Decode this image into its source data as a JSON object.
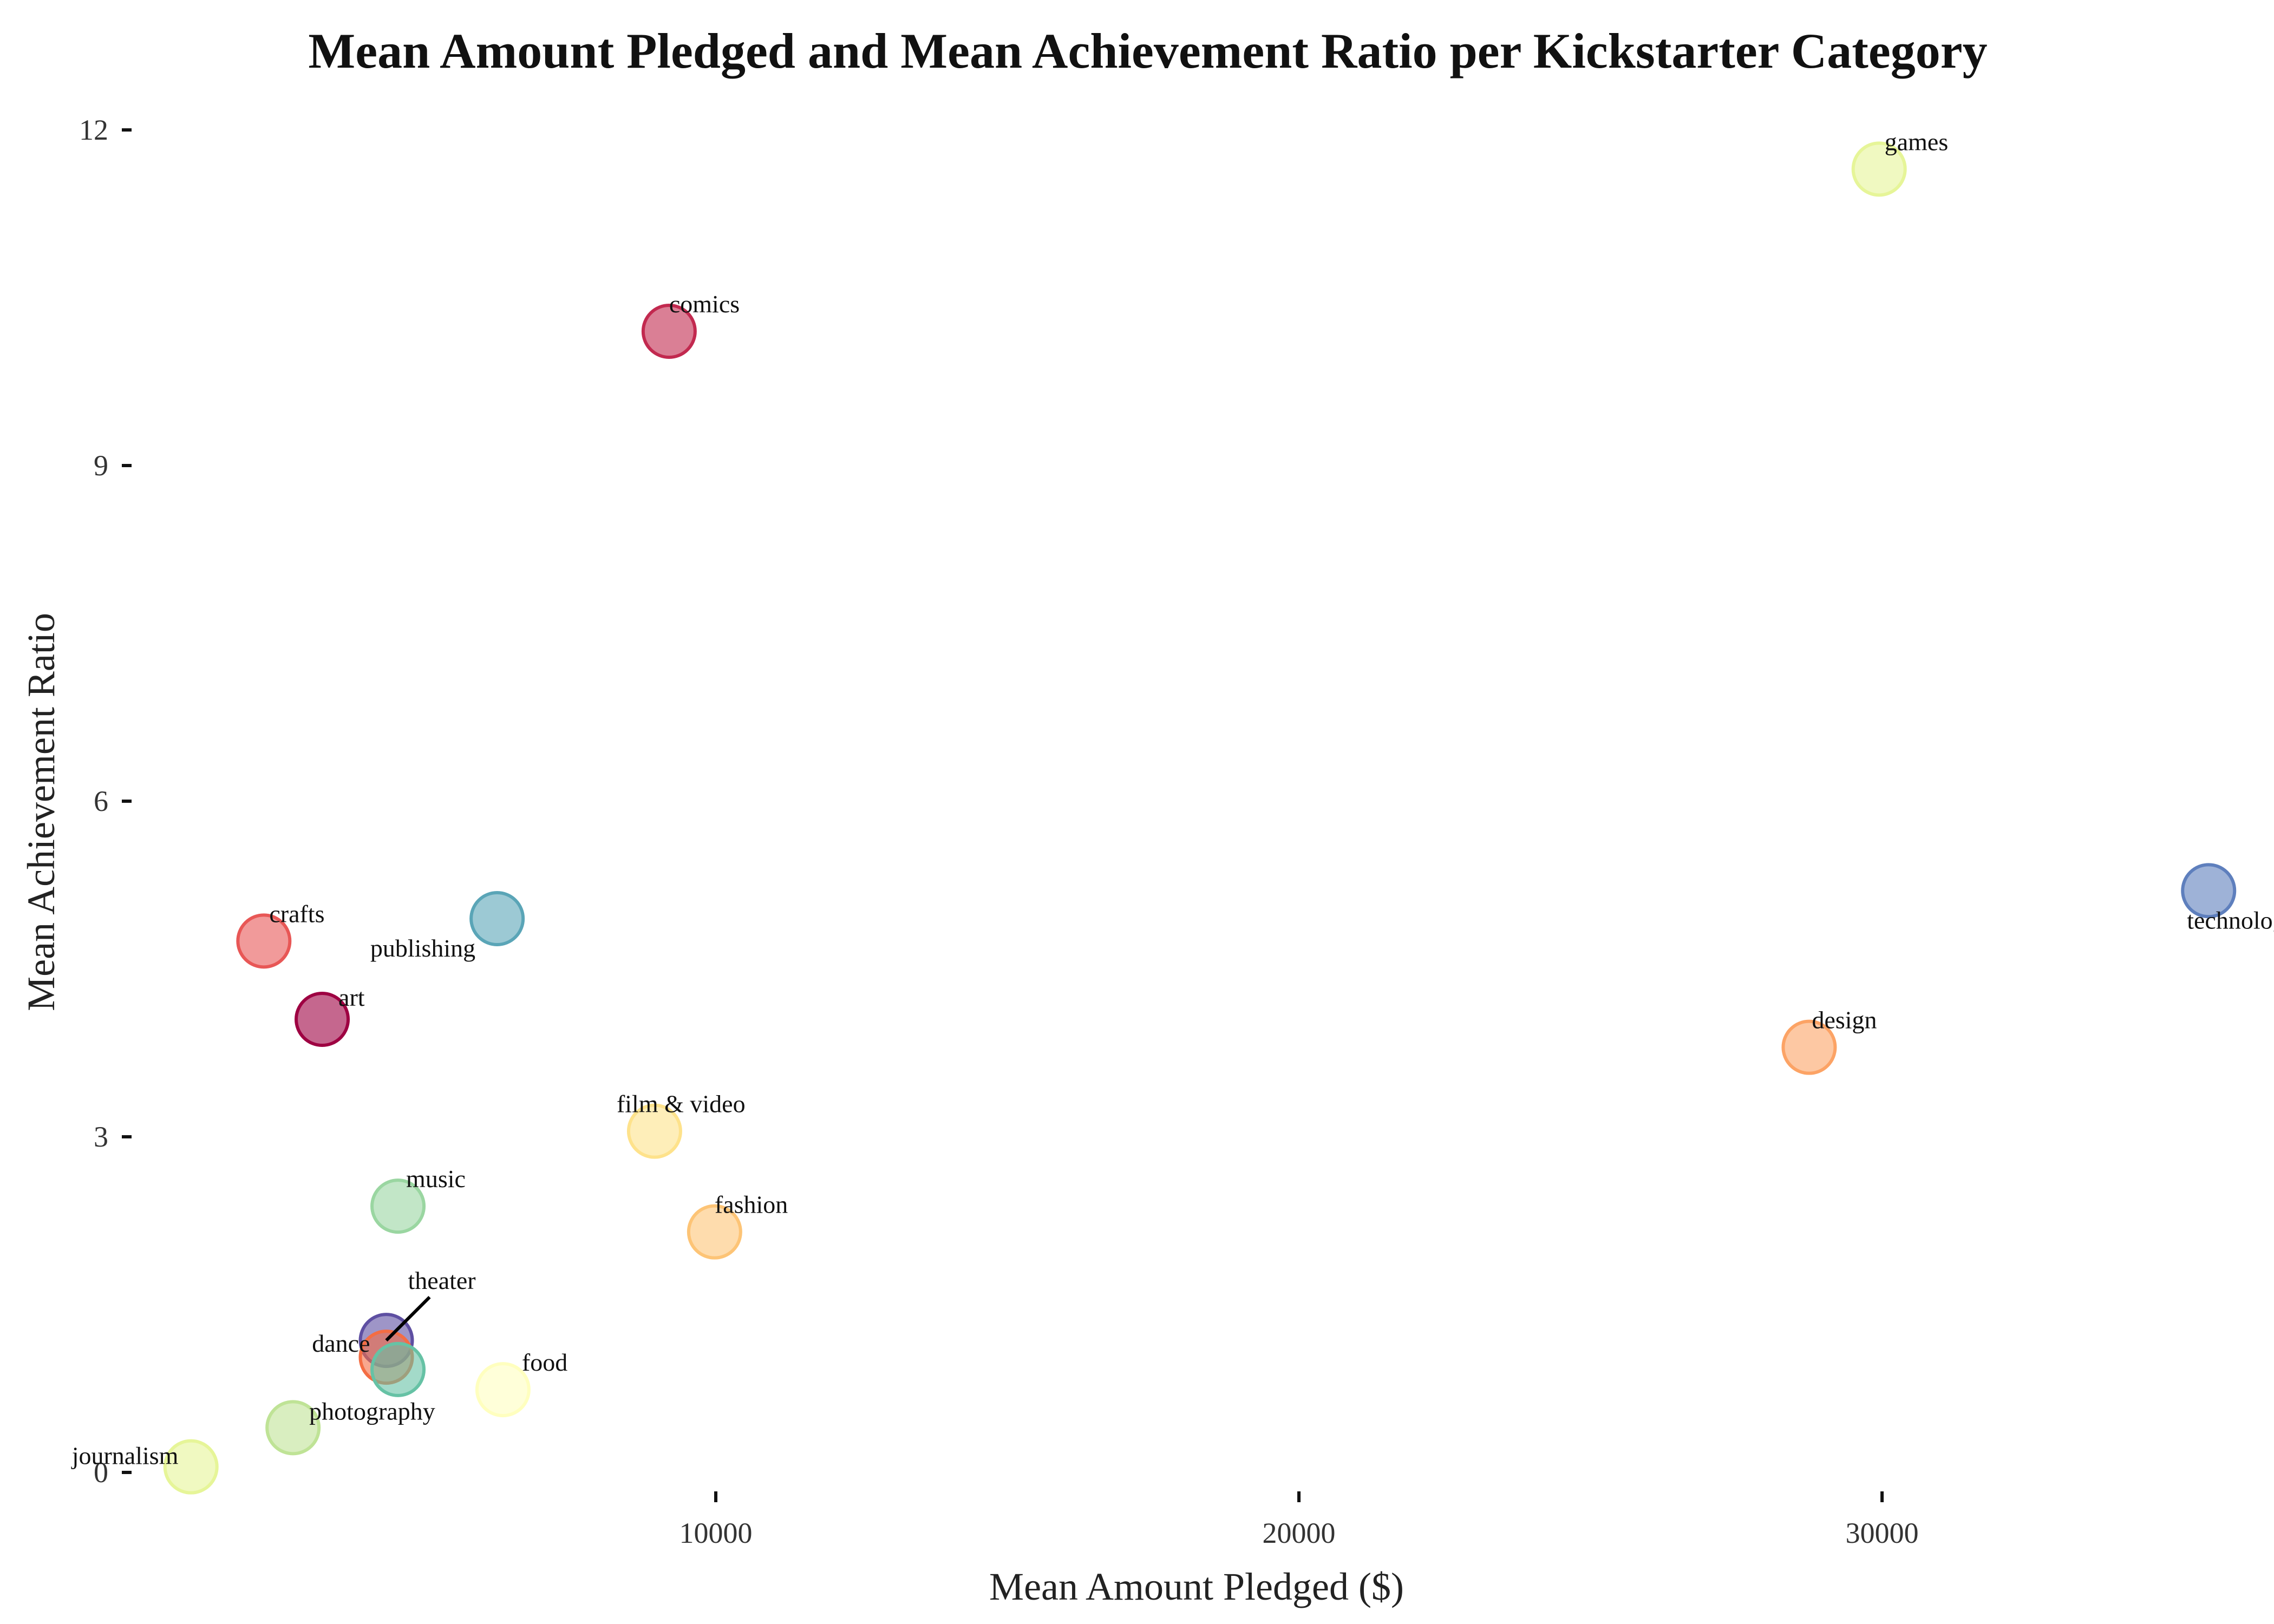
{
  "chart_data": {
    "type": "scatter",
    "title": "Mean Amount Pledged and Mean Achievement Ratio per Kickstarter Category",
    "xlabel": "Mean Amount Pledged ($)",
    "ylabel": "Mean Achievement Ratio",
    "xlim": [
      0,
      35700
    ],
    "ylim": [
      0,
      12
    ],
    "x_ticks": [
      10000,
      20000,
      30000
    ],
    "y_ticks": [
      0,
      3,
      6,
      9,
      12
    ],
    "grid": false,
    "legend": "none",
    "points": [
      {
        "label": "games",
        "x": 29950,
        "y": 11.65,
        "color": "#e6f598"
      },
      {
        "label": "comics",
        "x": 9200,
        "y": 10.2,
        "color": "#c2294f"
      },
      {
        "label": "technology",
        "x": 35600,
        "y": 5.2,
        "color": "#5e7fbd"
      },
      {
        "label": "publishing",
        "x": 6250,
        "y": 4.95,
        "color": "#5aa5b7"
      },
      {
        "label": "crafts",
        "x": 2250,
        "y": 4.75,
        "color": "#e85756"
      },
      {
        "label": "art",
        "x": 3250,
        "y": 4.05,
        "color": "#9e0142"
      },
      {
        "label": "design",
        "x": 28750,
        "y": 3.8,
        "color": "#fca365"
      },
      {
        "label": "film & video",
        "x": 8950,
        "y": 3.05,
        "color": "#fee28b"
      },
      {
        "label": "music",
        "x": 4550,
        "y": 2.38,
        "color": "#9ad6a1"
      },
      {
        "label": "fashion",
        "x": 9980,
        "y": 2.15,
        "color": "#fdc476"
      },
      {
        "label": "theater",
        "x": 4350,
        "y": 1.18,
        "color": "#5e4fa2"
      },
      {
        "label": "dance",
        "x": 4350,
        "y": 1.03,
        "color": "#f46d43"
      },
      {
        "label": "",
        "x": 4550,
        "y": 0.92,
        "color": "#66c2a5"
      },
      {
        "label": "food",
        "x": 6350,
        "y": 0.74,
        "color": "#ffffbf"
      },
      {
        "label": "photography",
        "x": 2750,
        "y": 0.4,
        "color": "#bfe396"
      },
      {
        "label": "journalism",
        "x": 1000,
        "y": 0.05,
        "color": "#e6f598"
      }
    ]
  }
}
